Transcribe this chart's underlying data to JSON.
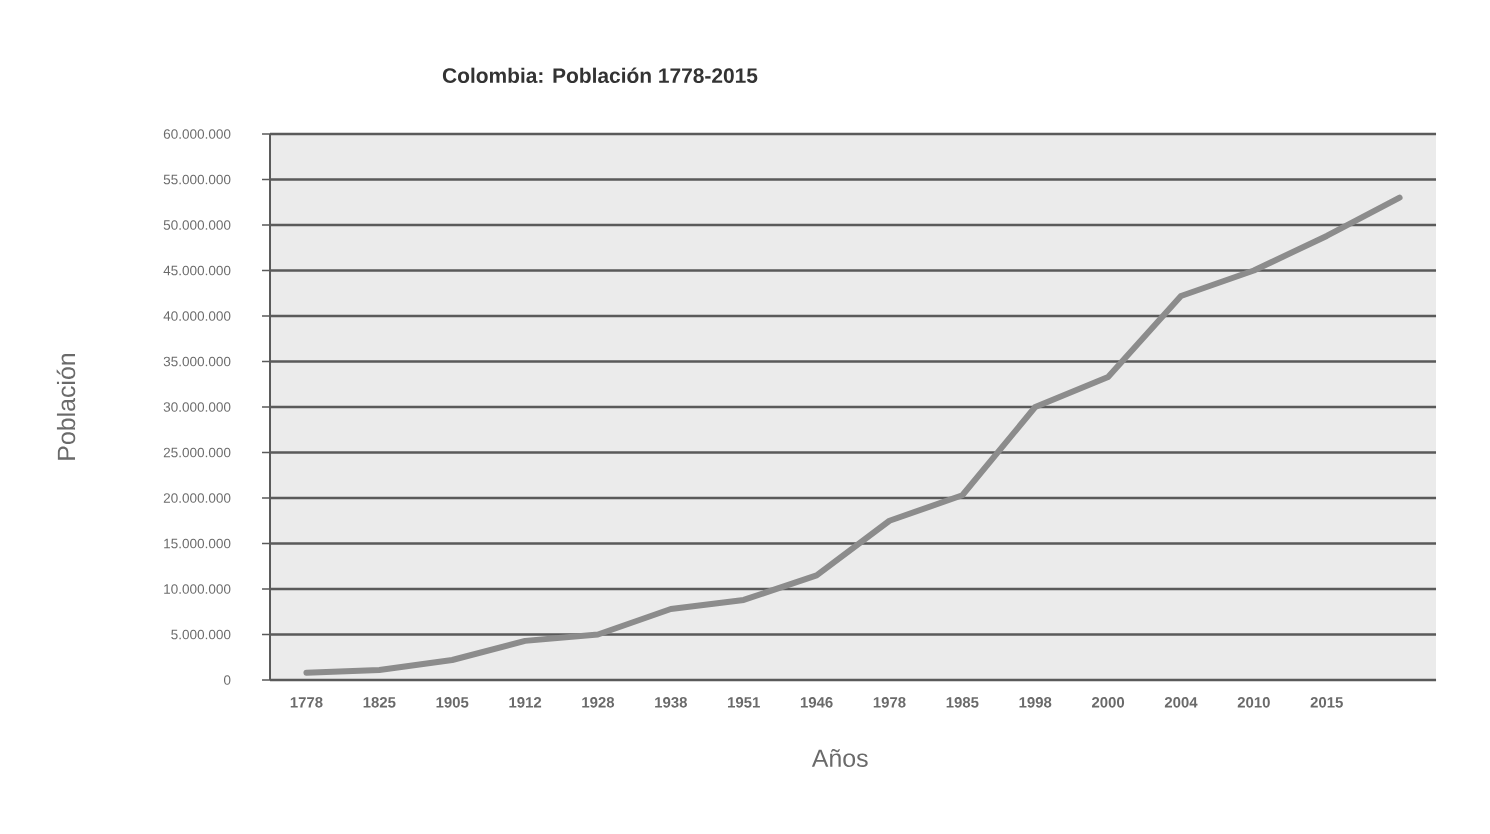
{
  "chart_data": {
    "type": "line",
    "title": "Colombia: Población 1778-2015",
    "xlabel": "Años",
    "ylabel": "Población",
    "categories": [
      "1778",
      "1825",
      "1905",
      "1912",
      "1928",
      "1938",
      "1951",
      "1946",
      "1978",
      "1985",
      "1998",
      "2000",
      "2004",
      "2010",
      "2015",
      null
    ],
    "series": [
      {
        "color": "#8c8c8c",
        "values": [
          800000,
          1100000,
          2200000,
          4300000,
          5000000,
          7800000,
          8800000,
          11500000,
          17500000,
          20300000,
          30000000,
          33300000,
          42200000,
          45000000,
          48800000,
          53000000
        ]
      }
    ],
    "ylim": [
      0,
      60000000
    ],
    "yticks": [
      0,
      {
        "value": 5000000,
        "label": "5.000.000"
      },
      {
        "value": 10000000,
        "label": "10.000.000"
      },
      {
        "value": 15000000,
        "label": "15.000.000"
      },
      {
        "value": 20000000,
        "label": "20.000.000"
      },
      {
        "value": 25000000,
        "label": "25.000.000"
      },
      {
        "value": 30000000,
        "label": "30.000.000"
      },
      {
        "value": 35000000,
        "label": "35.000.000"
      },
      {
        "value": 40000000,
        "label": "40.000.000"
      },
      {
        "value": 45000000,
        "label": "45.000.000"
      },
      {
        "value": 50000000,
        "label": "50.000.000"
      },
      {
        "value": 55000000,
        "label": "55.000.000"
      },
      {
        "value": 60000000,
        "label": "60.000.000"
      }
    ],
    "grid": "y",
    "line_style": "solid"
  }
}
